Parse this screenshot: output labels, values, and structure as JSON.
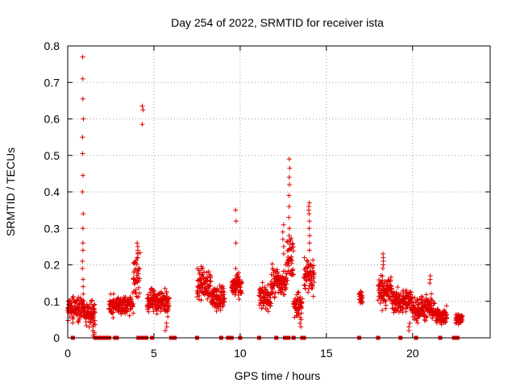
{
  "chart_data": {
    "type": "scatter",
    "title": "Day 254 of 2022, SRMTID for receiver ista",
    "xlabel": "GPS time / hours",
    "ylabel": "SRMTID / TECUs",
    "xlim": [
      0,
      24.5
    ],
    "ylim": [
      0,
      0.8
    ],
    "xticks": [
      0,
      5,
      10,
      15,
      20
    ],
    "yticks": [
      0,
      0.1,
      0.2,
      0.3,
      0.4,
      0.5,
      0.6,
      0.7,
      0.8
    ],
    "grid": true,
    "marker": "plus",
    "color": "#e00000",
    "clusters": [
      {
        "start": 0.0,
        "end": 0.95,
        "center": 0.08,
        "spread": 0.03
      },
      {
        "start": 0.95,
        "end": 1.6,
        "center": 0.07,
        "spread": 0.03
      },
      {
        "start": 2.4,
        "end": 3.8,
        "center": 0.09,
        "spread": 0.025
      },
      {
        "start": 3.8,
        "end": 4.2,
        "center": 0.17,
        "spread": 0.05
      },
      {
        "start": 4.6,
        "end": 5.9,
        "center": 0.1,
        "spread": 0.03
      },
      {
        "start": 7.5,
        "end": 8.3,
        "center": 0.15,
        "spread": 0.04
      },
      {
        "start": 8.3,
        "end": 9.1,
        "center": 0.11,
        "spread": 0.03
      },
      {
        "start": 9.5,
        "end": 10.1,
        "center": 0.14,
        "spread": 0.03
      },
      {
        "start": 11.1,
        "end": 11.8,
        "center": 0.11,
        "spread": 0.03
      },
      {
        "start": 11.8,
        "end": 12.7,
        "center": 0.15,
        "spread": 0.04
      },
      {
        "start": 12.7,
        "end": 13.1,
        "center": 0.22,
        "spread": 0.05
      },
      {
        "start": 13.1,
        "end": 13.6,
        "center": 0.09,
        "spread": 0.03
      },
      {
        "start": 13.7,
        "end": 14.3,
        "center": 0.17,
        "spread": 0.05
      },
      {
        "start": 16.9,
        "end": 17.1,
        "center": 0.11,
        "spread": 0.02
      },
      {
        "start": 18.0,
        "end": 18.8,
        "center": 0.13,
        "spread": 0.04
      },
      {
        "start": 18.8,
        "end": 20.0,
        "center": 0.1,
        "spread": 0.03
      },
      {
        "start": 20.0,
        "end": 21.3,
        "center": 0.08,
        "spread": 0.03
      },
      {
        "start": 21.3,
        "end": 22.0,
        "center": 0.06,
        "spread": 0.02
      },
      {
        "start": 22.5,
        "end": 22.9,
        "center": 0.05,
        "spread": 0.015
      }
    ],
    "spikes": [
      {
        "x": 0.88,
        "values": [
          0.77,
          0.71,
          0.655,
          0.6,
          0.55,
          0.505,
          0.445,
          0.4,
          0.34,
          0.3,
          0.26,
          0.24,
          0.21,
          0.19,
          0.16,
          0.14,
          0.12
        ]
      },
      {
        "x": 4.35,
        "values": [
          0.635,
          0.625,
          0.585
        ]
      },
      {
        "x": 4.05,
        "values": [
          0.26,
          0.25,
          0.24,
          0.23,
          0.22
        ]
      },
      {
        "x": 9.75,
        "values": [
          0.35,
          0.32,
          0.26,
          0.19,
          0.17
        ]
      },
      {
        "x": 12.85,
        "values": [
          0.49,
          0.465,
          0.44,
          0.42,
          0.39,
          0.36,
          0.33,
          0.3,
          0.28
        ]
      },
      {
        "x": 14.0,
        "values": [
          0.37,
          0.36,
          0.35,
          0.34,
          0.32,
          0.3,
          0.28,
          0.26,
          0.24
        ]
      },
      {
        "x": 12.5,
        "values": [
          0.31,
          0.29,
          0.27,
          0.25,
          0.23
        ]
      },
      {
        "x": 18.3,
        "values": [
          0.23,
          0.22,
          0.21,
          0.2,
          0.19
        ]
      },
      {
        "x": 21.0,
        "values": [
          0.17,
          0.16,
          0.15
        ]
      }
    ],
    "dips": [
      {
        "x": 1.5,
        "values": [
          0.04,
          0.03,
          0.02,
          0.015,
          0.01,
          0.005
        ]
      },
      {
        "x": 5.7,
        "values": [
          0.04,
          0.03,
          0.02
        ]
      },
      {
        "x": 13.5,
        "values": [
          0.05,
          0.04,
          0.03
        ]
      },
      {
        "x": 19.8,
        "values": [
          0.04,
          0.03,
          0.02
        ]
      }
    ],
    "zero_markers": [
      0.3,
      1.6,
      1.8,
      2.0,
      2.2,
      2.4,
      2.75,
      2.85,
      4.1,
      4.25,
      4.35,
      4.45,
      4.55,
      4.9,
      6.0,
      6.2,
      7.5,
      8.9,
      9.3,
      9.5,
      10.0,
      11.1,
      12.1,
      12.6,
      12.8,
      13.1,
      13.6,
      13.7,
      16.9,
      18.0,
      19.3,
      20.2,
      21.6,
      22.4,
      22.6
    ]
  }
}
